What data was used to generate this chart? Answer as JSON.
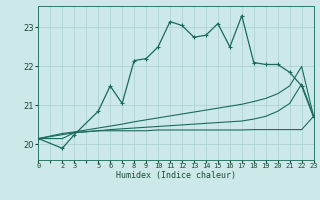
{
  "xlabel": "Humidex (Indice chaleur)",
  "bg_color": "#cce8e8",
  "grid_color": "#aacfcf",
  "line_color": "#1a6b5a",
  "xlim": [
    0,
    23
  ],
  "ylim": [
    19.6,
    23.55
  ],
  "yticks": [
    20,
    21,
    22,
    23
  ],
  "xtick_labels": [
    "0",
    "",
    "2",
    "3",
    "",
    "5",
    "6",
    "7",
    "8",
    "9",
    "10",
    "11",
    "12",
    "13",
    "14",
    "15",
    "16",
    "17",
    "18",
    "19",
    "20",
    "21",
    "22",
    "23"
  ],
  "series1_x": [
    0,
    2,
    3,
    5,
    6,
    7,
    8,
    9,
    10,
    11,
    12,
    13,
    14,
    15,
    16,
    17,
    18,
    19,
    20,
    21,
    22,
    23
  ],
  "series1_y": [
    20.15,
    19.9,
    20.25,
    20.85,
    21.5,
    21.05,
    22.15,
    22.2,
    22.5,
    23.15,
    23.05,
    22.75,
    22.8,
    23.1,
    22.5,
    23.3,
    22.1,
    22.05,
    22.05,
    21.85,
    21.5,
    20.7
  ],
  "series2_x": [
    0,
    2,
    3,
    5,
    6,
    7,
    8,
    9,
    10,
    11,
    12,
    13,
    14,
    15,
    16,
    17,
    18,
    19,
    20,
    21,
    22,
    23
  ],
  "series2_y": [
    20.15,
    20.25,
    20.3,
    20.35,
    20.38,
    20.4,
    20.42,
    20.44,
    20.46,
    20.48,
    20.5,
    20.52,
    20.54,
    20.56,
    20.58,
    20.6,
    20.65,
    20.72,
    20.85,
    21.05,
    21.55,
    20.72
  ],
  "series3_x": [
    0,
    2,
    3,
    5,
    6,
    7,
    8,
    9,
    10,
    11,
    12,
    13,
    14,
    15,
    16,
    17,
    18,
    19,
    20,
    21,
    22,
    23
  ],
  "series3_y": [
    20.15,
    20.28,
    20.32,
    20.42,
    20.47,
    20.52,
    20.58,
    20.63,
    20.68,
    20.73,
    20.78,
    20.83,
    20.88,
    20.93,
    20.98,
    21.03,
    21.1,
    21.18,
    21.3,
    21.5,
    22.0,
    20.72
  ],
  "series4_x": [
    0,
    2,
    3,
    5,
    6,
    7,
    8,
    9,
    10,
    11,
    12,
    13,
    14,
    15,
    16,
    17,
    18,
    19,
    20,
    21,
    22,
    23
  ],
  "series4_y": [
    20.15,
    20.15,
    20.3,
    20.35,
    20.35,
    20.35,
    20.35,
    20.35,
    20.37,
    20.37,
    20.37,
    20.37,
    20.37,
    20.37,
    20.37,
    20.37,
    20.38,
    20.38,
    20.38,
    20.38,
    20.38,
    20.72
  ]
}
